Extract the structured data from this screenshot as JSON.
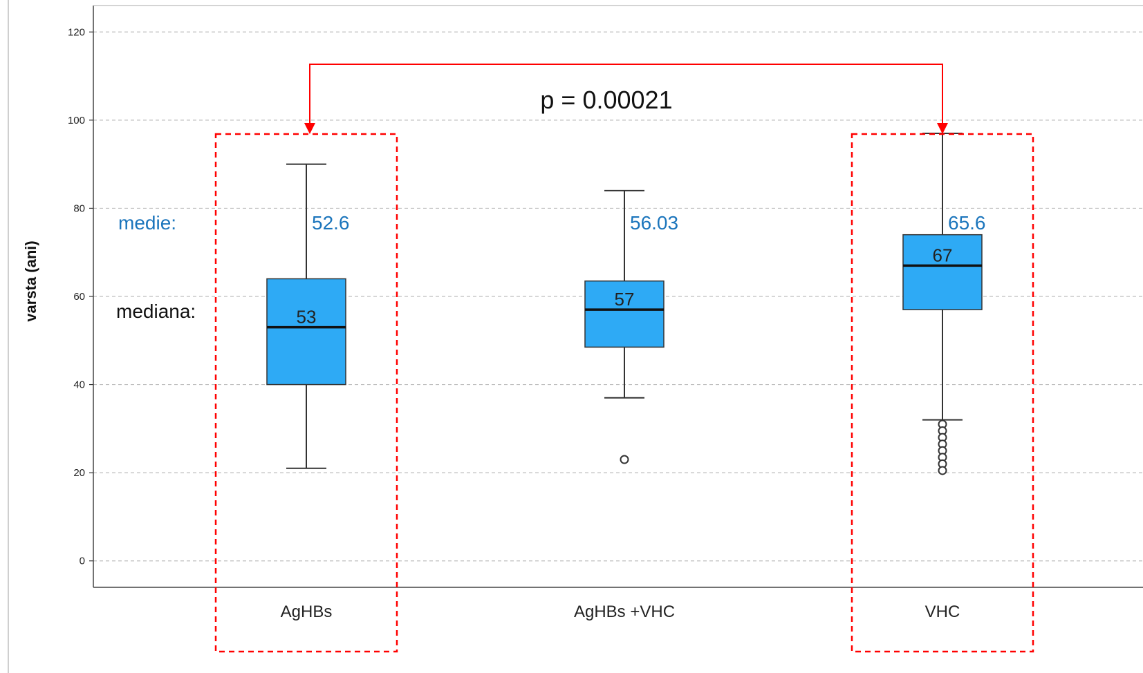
{
  "chart_data": {
    "type": "box",
    "ylabel": "varsta (ani)",
    "ylim": [
      -6,
      126
    ],
    "yticks": [
      0,
      20,
      40,
      60,
      80,
      100,
      120
    ],
    "grid": true,
    "categories": [
      "AgHBs",
      "AgHBs +VHC",
      "VHC"
    ],
    "boxes": [
      {
        "category": "AgHBs",
        "whisker_low": 21,
        "q1": 40,
        "median": 53,
        "q3": 64,
        "whisker_high": 90,
        "outliers": [],
        "median_label": "53",
        "mean_label": "52.6",
        "highlighted": true
      },
      {
        "category": "AgHBs +VHC",
        "whisker_low": 37,
        "q1": 48.5,
        "median": 57,
        "q3": 63.5,
        "whisker_high": 84,
        "outliers": [
          23
        ],
        "median_label": "57",
        "mean_label": "56.03",
        "highlighted": false
      },
      {
        "category": "VHC",
        "whisker_low": 32,
        "q1": 57,
        "median": 67,
        "q3": 74,
        "whisker_high": 97,
        "outliers": [
          31,
          29.5,
          28,
          26.5,
          25,
          23.5,
          22,
          20.5
        ],
        "median_label": "67",
        "mean_label": "65.6",
        "highlighted": true
      }
    ],
    "annotations": {
      "mean_prefix": "medie:",
      "median_prefix": "mediana:",
      "p_value": "p = 0.00021",
      "comparison": [
        "AgHBs",
        "VHC"
      ]
    },
    "colors": {
      "box_fill": "#2eaaf5",
      "highlight": "#ff0000",
      "mean_text": "#1b75bc",
      "grid": "#bdbdbd"
    }
  }
}
